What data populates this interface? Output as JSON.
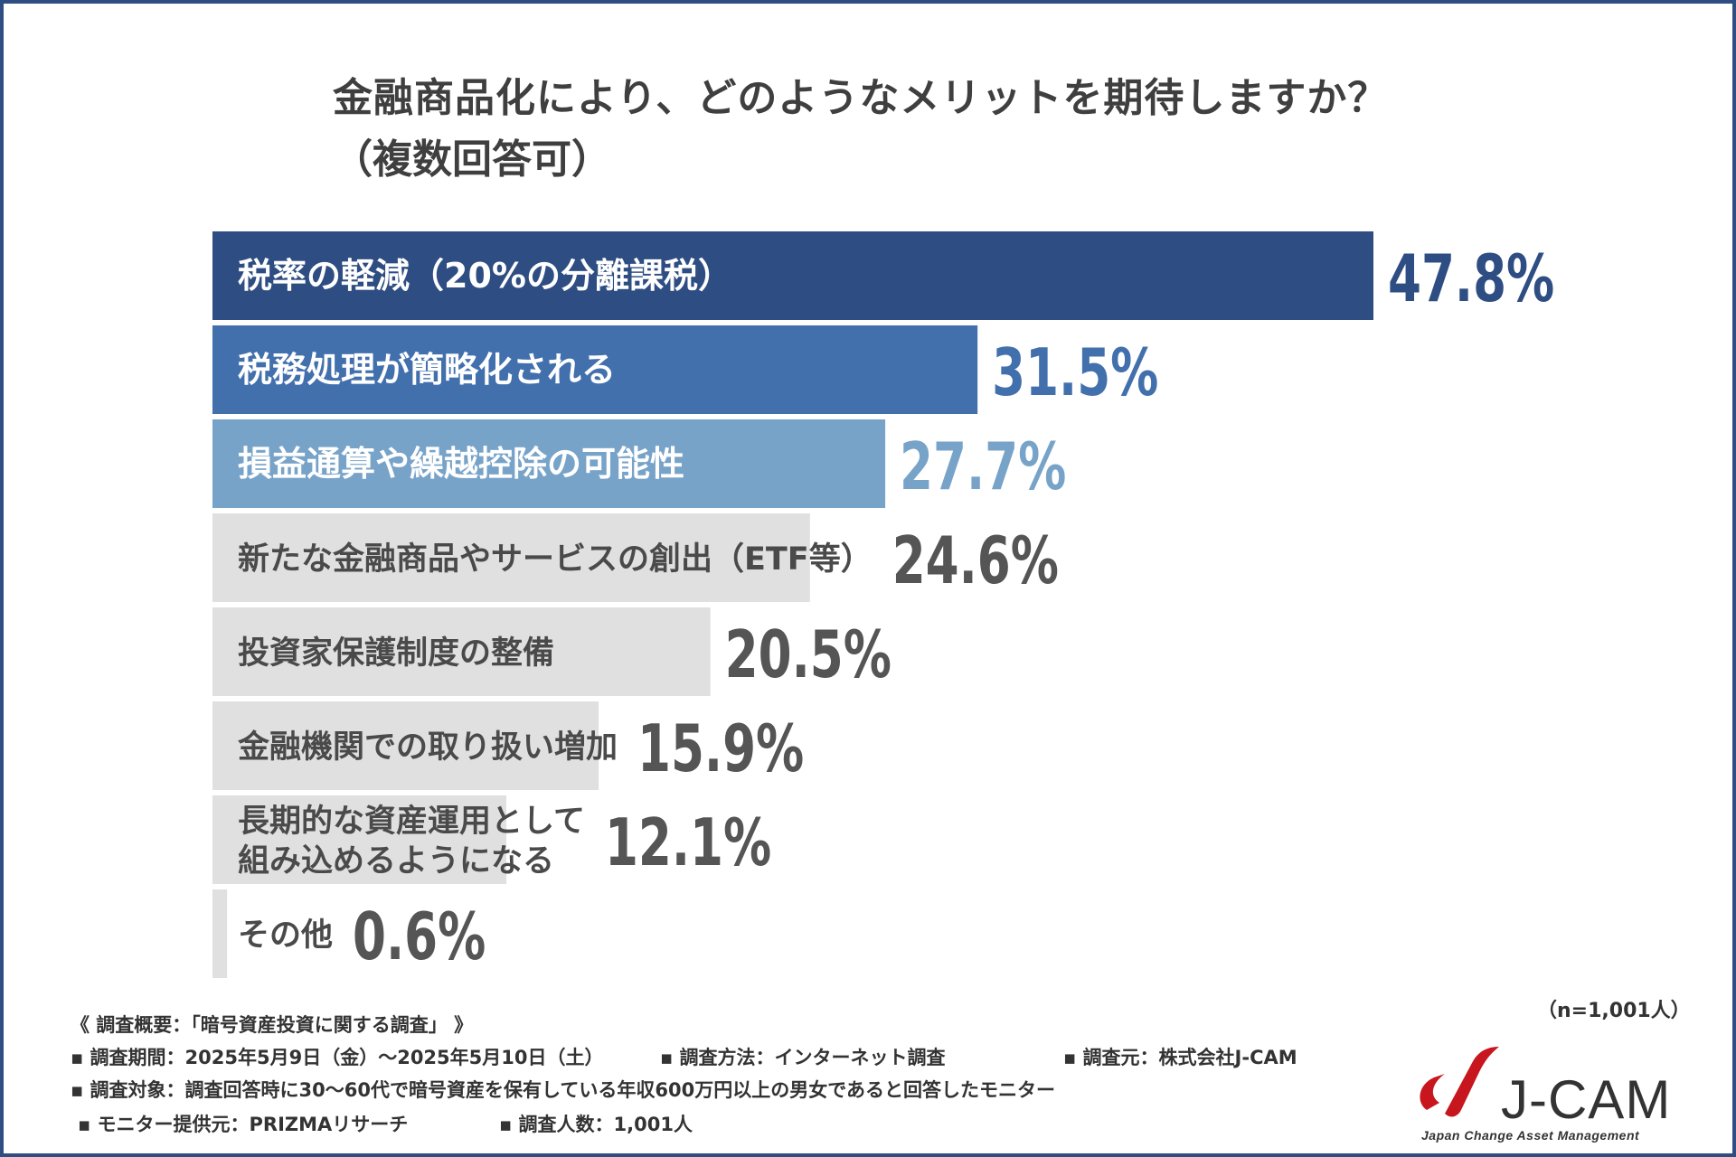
{
  "question": {
    "title": "金融商品化により、どのようなメリットを期待しますか？",
    "subtitle": "（複数回答可）"
  },
  "chart_data": {
    "type": "bar",
    "orientation": "horizontal",
    "title": "金融商品化により、どのようなメリットを期待しますか？（複数回答可）",
    "categories": [
      "税率の軽減（20%の分離課税）",
      "税務処理が簡略化される",
      "損益通算や繰越控除の可能性",
      "新たな金融商品やサービスの創出（ETF等）",
      "投資家保護制度の整備",
      "金融機関での取り扱い増加",
      "長期的な資産運用として\n組み込めるようになる",
      "その他"
    ],
    "values": [
      47.8,
      31.5,
      27.7,
      24.6,
      20.5,
      15.9,
      12.1,
      0.6
    ],
    "value_labels": [
      "47.8%",
      "31.5%",
      "27.7%",
      "24.6%",
      "20.5%",
      "15.9%",
      "12.1%",
      "0.6%"
    ],
    "bar_colors": [
      "#2e4d82",
      "#4270ad",
      "#78a3c9",
      "#e0e0e0",
      "#e0e0e0",
      "#e0e0e0",
      "#e0e0e0",
      "#e0e0e0"
    ],
    "label_colors": [
      "#ffffff",
      "#ffffff",
      "#ffffff",
      "#4a4a4a",
      "#4a4a4a",
      "#4a4a4a",
      "#4a4a4a",
      "#4a4a4a"
    ],
    "value_colors": [
      "#2e4d82",
      "#4270ad",
      "#78a3c9",
      "#555555",
      "#555555",
      "#555555",
      "#555555",
      "#555555"
    ],
    "xlim": [
      0,
      47.8
    ],
    "grid": false,
    "legend": "none"
  },
  "survey": {
    "overview": "《 調査概要：「暗号資産投資に関する調査」 》",
    "period": "▪ 調査期間：2025年5月9日（金）～2025年5月10日（土）",
    "method": "▪ 調査方法：インターネット調査",
    "source": "▪ 調査元：株式会社J-CAM",
    "target": "▪ 調査対象：調査回答時に30～60代で暗号資産を保有している年収600万円以上の男女であると回答したモニター",
    "provider": "▪ モニター提供元：PRIZMAリサーチ",
    "count": "▪ 調査人数：1,001人",
    "sample": "（n=1,001人）"
  },
  "logo": {
    "name": "J-CAM",
    "tagline": "Japan Change Asset Management",
    "color": "#c8161e"
  }
}
